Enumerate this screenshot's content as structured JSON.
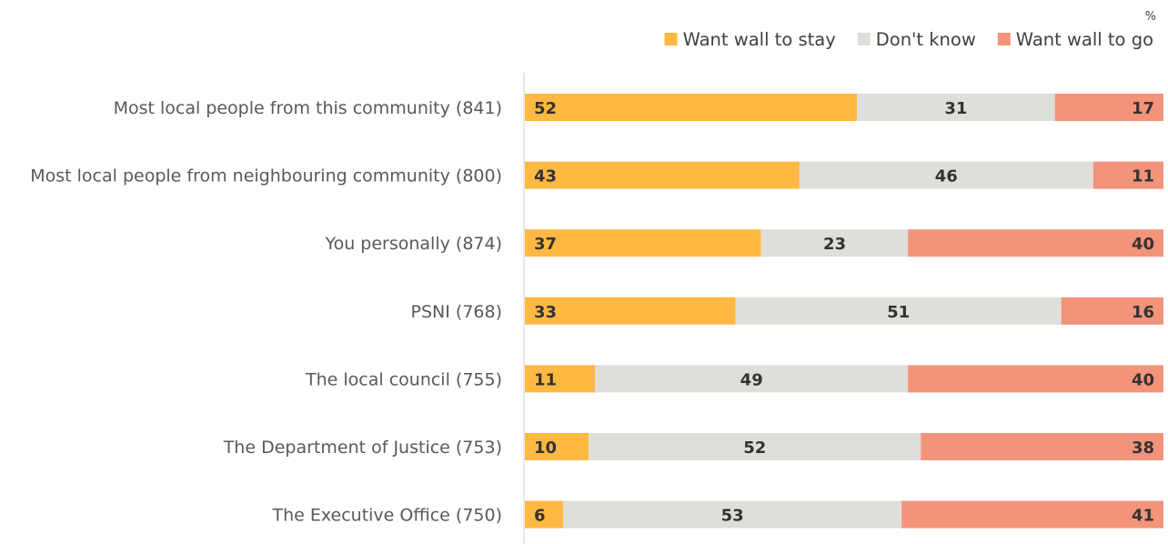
{
  "chart_data": {
    "type": "bar",
    "orientation": "horizontal",
    "stacked": true,
    "unit_label": "%",
    "categories": [
      "Most local people from this community (841)",
      "Most local people from neighbouring community (800)",
      "You personally (874)",
      "PSNI (768)",
      "The local council (755)",
      "The Department of Justice (753)",
      "The Executive Office (750)"
    ],
    "series": [
      {
        "name": "Want wall to stay",
        "color": "#FFB942",
        "values": [
          52,
          43,
          37,
          33,
          11,
          10,
          6
        ]
      },
      {
        "name": "Don't know",
        "color": "#DEDEDA",
        "values": [
          31,
          46,
          23,
          51,
          49,
          52,
          53
        ]
      },
      {
        "name": "Want wall to go",
        "color": "#F3937A",
        "values": [
          17,
          11,
          40,
          16,
          40,
          38,
          41
        ]
      }
    ],
    "xlim": [
      0,
      100
    ],
    "legend_position": "top-right",
    "grid": false
  }
}
